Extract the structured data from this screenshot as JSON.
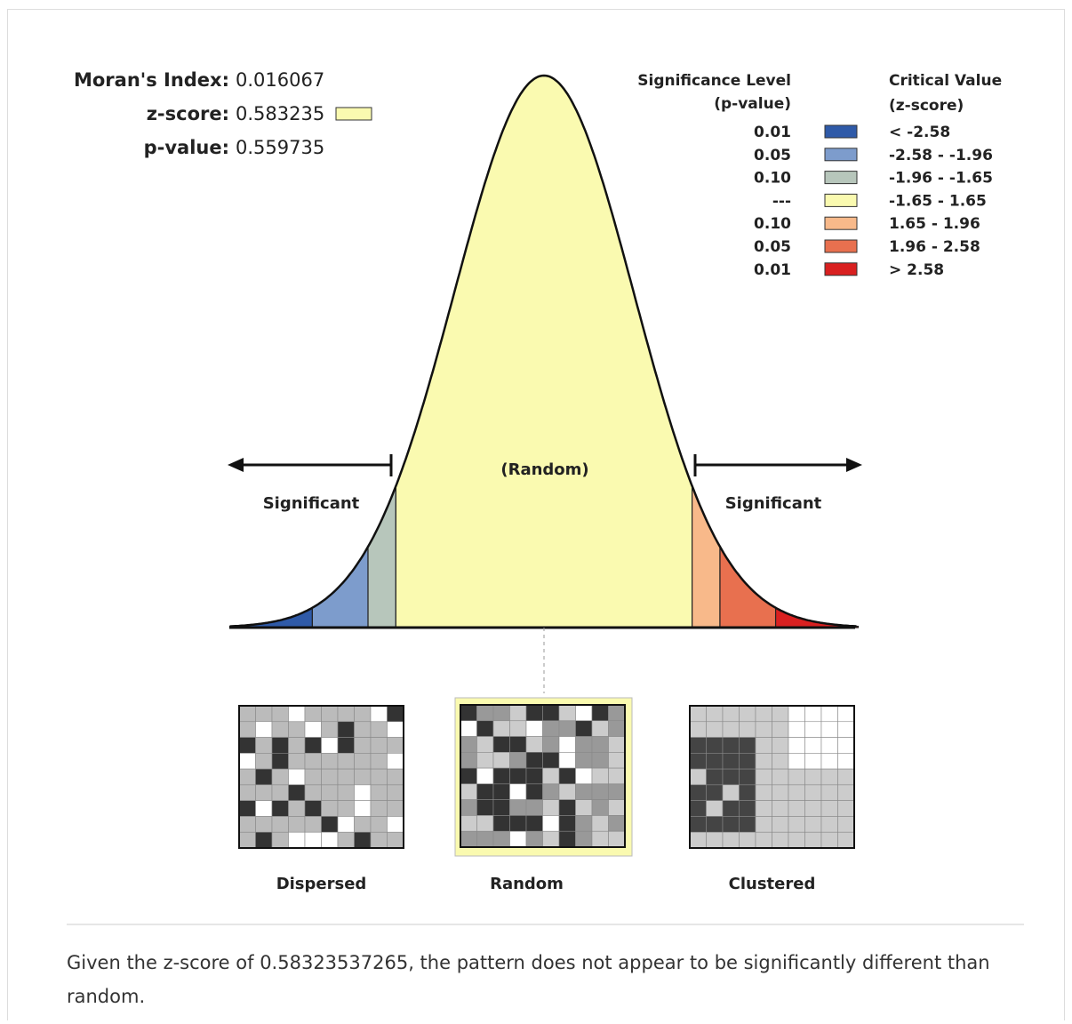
{
  "stats": [
    {
      "label": "Moran's Index:",
      "value": "0.016067"
    },
    {
      "label": "z-score:",
      "value": "0.583235"
    },
    {
      "label": "p-value:",
      "value": "0.559735"
    }
  ],
  "legend": {
    "significance_header": [
      "Significance Level",
      "(p-value)"
    ],
    "critical_header": [
      "Critical Value",
      "(z-score)"
    ],
    "rows": [
      {
        "p": "0.01",
        "z": "< -2.58"
      },
      {
        "p": "0.05",
        "z": "-2.58 - -1.96"
      },
      {
        "p": "0.10",
        "z": "-1.96 - -1.65"
      },
      {
        "p": "---",
        "z": "-1.65 - 1.65"
      },
      {
        "p": "0.10",
        "z": "1.65 - 1.96"
      },
      {
        "p": "0.05",
        "z": "1.96 - 2.58"
      },
      {
        "p": "0.01",
        "z": "> 2.58"
      }
    ]
  },
  "diagram": {
    "center_label": "(Random)",
    "left_label": "Significant",
    "right_label": "Significant"
  },
  "patterns": [
    "Dispersed",
    "Random",
    "Clustered"
  ],
  "conclusion": "Given the z-score of 0.58323537265, the pattern does not appear to be significantly different than random."
}
